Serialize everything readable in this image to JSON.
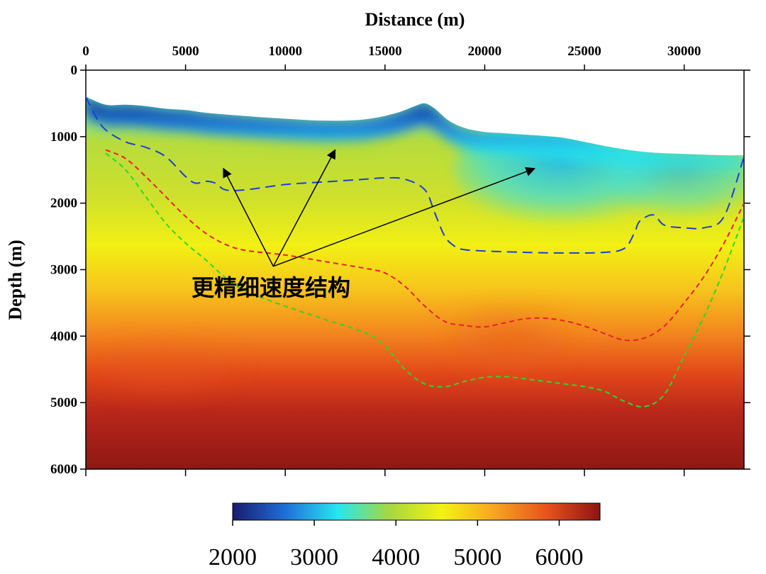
{
  "chart_data": {
    "type": "heatmap",
    "xlabel": "Distance (m)",
    "ylabel": "Depth (m)",
    "xlim": [
      0,
      33000
    ],
    "ylim": [
      0,
      6000
    ],
    "x_ticks": [
      0,
      5000,
      10000,
      15000,
      20000,
      25000,
      30000
    ],
    "y_ticks": [
      0,
      1000,
      2000,
      3000,
      4000,
      5000,
      6000
    ],
    "y_inverted": true,
    "x_axis_position": "top",
    "colorbar": {
      "range": [
        2000,
        6500
      ],
      "ticks": [
        2000,
        3000,
        4000,
        5000,
        6000
      ],
      "placement": "bottom",
      "colors": [
        "#1a1a6e",
        "#1e6fd8",
        "#26e6f0",
        "#a8d83c",
        "#f4f214",
        "#f6a420",
        "#e8501c",
        "#8c1414"
      ]
    },
    "surface_top": {
      "x": [
        0,
        1000,
        2000,
        3000,
        4000,
        5000,
        6000,
        8000,
        10000,
        12000,
        14000,
        15500,
        16500,
        17000,
        17500,
        18200,
        19000,
        20000,
        21000,
        22000,
        23000,
        24000,
        25000,
        26000,
        27000,
        28000,
        29000,
        30000,
        31000,
        32000,
        33000
      ],
      "y": [
        400,
        520,
        520,
        540,
        580,
        600,
        640,
        690,
        730,
        760,
        740,
        650,
        540,
        500,
        580,
        760,
        870,
        930,
        950,
        970,
        990,
        1020,
        1080,
        1140,
        1190,
        1230,
        1250,
        1260,
        1270,
        1280,
        1280
      ]
    },
    "boundaries": [
      {
        "color": "#1a3fd8",
        "style": "long-dash",
        "x": [
          0,
          500,
          1000,
          2000,
          3000,
          4000,
          5000,
          5500,
          6000,
          6500,
          7000,
          8000,
          10000,
          12000,
          14000,
          15000,
          16000,
          17000,
          17500,
          18000,
          18500,
          19000,
          20000,
          22000,
          24000,
          26000,
          27000,
          27500,
          27700,
          28000,
          28500,
          29000,
          30000,
          31000,
          32000,
          33000
        ],
        "y": [
          400,
          700,
          900,
          1080,
          1160,
          1300,
          1600,
          1700,
          1670,
          1700,
          1800,
          1800,
          1720,
          1680,
          1640,
          1620,
          1640,
          1800,
          2150,
          2500,
          2650,
          2700,
          2720,
          2740,
          2750,
          2740,
          2680,
          2450,
          2300,
          2220,
          2180,
          2330,
          2370,
          2370,
          2200,
          1300
        ]
      },
      {
        "color": "#e8202a",
        "style": "dash",
        "x": [
          1000,
          2000,
          3000,
          4000,
          5000,
          6000,
          7000,
          8000,
          10000,
          12000,
          14000,
          15000,
          16000,
          17000,
          18000,
          19000,
          20000,
          21000,
          22000,
          23000,
          24000,
          25000,
          26000,
          27000,
          28000,
          29000,
          30000,
          31000,
          32000,
          33000
        ],
        "y": [
          1200,
          1330,
          1600,
          1900,
          2200,
          2450,
          2620,
          2710,
          2780,
          2880,
          2980,
          3050,
          3250,
          3550,
          3780,
          3840,
          3860,
          3800,
          3740,
          3730,
          3770,
          3850,
          3960,
          4060,
          4030,
          3850,
          3500,
          3100,
          2600,
          2000
        ]
      },
      {
        "color": "#2ad82a",
        "style": "dash",
        "x": [
          1000,
          2000,
          3000,
          4000,
          5000,
          6000,
          7000,
          8000,
          10000,
          12000,
          14000,
          15000,
          16000,
          17000,
          18000,
          19000,
          20000,
          21000,
          22000,
          23000,
          24000,
          25000,
          26000,
          27000,
          28000,
          29000,
          30000,
          31000,
          32000,
          33000
        ],
        "y": [
          1250,
          1500,
          1900,
          2300,
          2600,
          2850,
          3120,
          3320,
          3550,
          3750,
          3950,
          4150,
          4500,
          4720,
          4760,
          4680,
          4620,
          4610,
          4640,
          4680,
          4720,
          4760,
          4830,
          4980,
          5060,
          4880,
          4300,
          3700,
          3000,
          2200
        ]
      }
    ],
    "annotation": {
      "text": "更精细速度结构",
      "arrow_origin": [
        9400,
        2950
      ],
      "arrow_targets": [
        [
          6900,
          1480
        ],
        [
          12500,
          1200
        ],
        [
          22500,
          1480
        ]
      ]
    }
  }
}
